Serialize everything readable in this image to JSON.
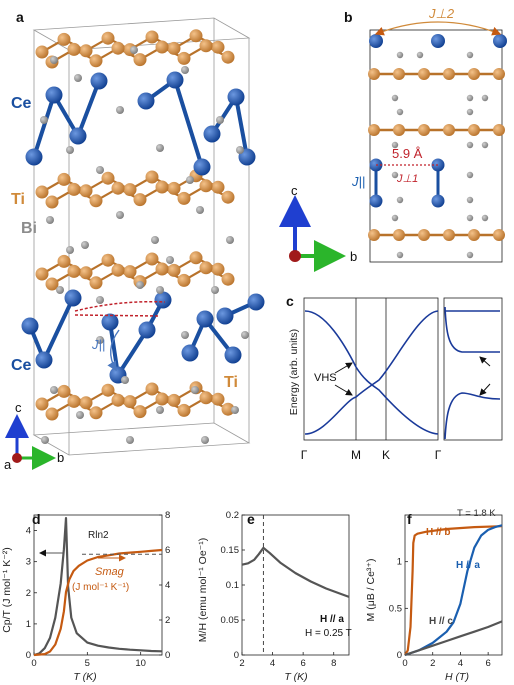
{
  "panels": {
    "a": "a",
    "b": "b",
    "c": "c",
    "d": "d",
    "e": "e",
    "f": "f"
  },
  "structure": {
    "atom_ce_top": "Ce",
    "atom_ti_top": "Ti",
    "atom_bi": "Bi",
    "atom_ce_bottom": "Ce",
    "atom_ti_bottom": "Ti",
    "j_parallel": "J||",
    "axis_c": "c",
    "axis_a": "a",
    "axis_b": "b",
    "distance": "5.9 Å",
    "j_perp1": "J⊥1",
    "j_perp2": "J⊥2",
    "colors": {
      "ce": "#1a4fa0",
      "ti": "#d08a3a",
      "bi": "#8c8c8c",
      "dashed": "#c0222b",
      "axis_c": "#1f3fd0",
      "axis_b": "#2bb52b",
      "axis_a": "#a01a1a"
    }
  },
  "band_panel": {
    "ylabel": "Energy (arb. units)",
    "vhs": "VHS",
    "kpoints": [
      "Γ",
      "M",
      "K",
      "Γ"
    ]
  },
  "chart_data": [
    {
      "panel": "d",
      "type": "line",
      "xlabel": "T (K)",
      "ylabel_left": "Cp/T (J mol⁻¹ K⁻²)",
      "ylabel_right": "",
      "xlim": [
        0,
        12
      ],
      "ylim_left": [
        0,
        4.5
      ],
      "ylim_right": [
        0,
        8
      ],
      "xticks": [
        0,
        5,
        10
      ],
      "yticks_left": [
        0,
        1,
        2,
        3,
        4
      ],
      "yticks_right": [
        0,
        2,
        4,
        6,
        8
      ],
      "annotations": [
        "Rln2",
        "Smag",
        "(J mol⁻¹ K⁻¹)"
      ],
      "series": [
        {
          "color": "#555555",
          "axis": "left",
          "x": [
            0,
            0.5,
            1,
            1.5,
            2,
            2.5,
            2.8,
            3.0,
            3.2,
            3.5,
            4,
            5,
            6,
            7,
            8,
            9,
            10,
            11,
            12
          ],
          "y": [
            0,
            0.05,
            0.22,
            0.55,
            1.2,
            2.3,
            3.4,
            4.4,
            2.2,
            1.2,
            0.7,
            0.4,
            0.3,
            0.24,
            0.2,
            0.17,
            0.15,
            0.13,
            0.12
          ]
        },
        {
          "color": "#c55a11",
          "axis": "right",
          "x": [
            0,
            1,
            1.5,
            2,
            2.5,
            2.8,
            3.0,
            3.3,
            3.7,
            4.2,
            5,
            6,
            7,
            8,
            9,
            10,
            11,
            12
          ],
          "y": [
            0,
            0.05,
            0.2,
            0.6,
            1.5,
            2.5,
            3.6,
            4.3,
            4.8,
            5.1,
            5.4,
            5.6,
            5.7,
            5.8,
            5.85,
            5.9,
            5.95,
            6.0
          ]
        }
      ],
      "reference_y_right": 5.76
    },
    {
      "panel": "e",
      "type": "line",
      "xlabel": "T (K)",
      "ylabel": "M/H (emu mol⁻¹ Oe⁻¹)",
      "xlim": [
        2,
        9
      ],
      "ylim": [
        0,
        0.2
      ],
      "xticks": [
        2,
        4,
        6,
        8
      ],
      "yticks": [
        0,
        0.05,
        0.1,
        0.15,
        0.2
      ],
      "annotations": [
        "H // a",
        "H = 0.25 T"
      ],
      "vline_x": 3.4,
      "series": [
        {
          "color": "#555555",
          "x": [
            2,
            2.4,
            2.8,
            3.1,
            3.4,
            3.8,
            4.5,
            5.5,
            6.5,
            7.5,
            8.5,
            9
          ],
          "y": [
            0.129,
            0.131,
            0.136,
            0.144,
            0.153,
            0.146,
            0.132,
            0.117,
            0.105,
            0.095,
            0.087,
            0.083
          ]
        }
      ]
    },
    {
      "panel": "f",
      "type": "line",
      "xlabel": "H (T)",
      "ylabel": "M (μB / Ce³⁺)",
      "xlim": [
        0,
        7
      ],
      "ylim": [
        0,
        1.5
      ],
      "xticks": [
        0,
        2,
        4,
        6
      ],
      "yticks": [
        0,
        0.5,
        1
      ],
      "annotations": [
        "T = 1.8 K"
      ],
      "series": [
        {
          "name": "H // b",
          "color": "#c55a11",
          "x": [
            0,
            0.2,
            0.4,
            0.55,
            0.6,
            0.7,
            0.9,
            1.5,
            3,
            5,
            7
          ],
          "y": [
            0,
            0.05,
            0.3,
            0.9,
            1.2,
            1.28,
            1.3,
            1.32,
            1.35,
            1.37,
            1.38
          ]
        },
        {
          "name": "H // a",
          "color": "#1a5fb0",
          "x": [
            0,
            1,
            2,
            3,
            3.5,
            4,
            4.5,
            5,
            5.5,
            6,
            6.5,
            7
          ],
          "y": [
            0,
            0.05,
            0.13,
            0.25,
            0.35,
            0.55,
            0.9,
            1.15,
            1.28,
            1.34,
            1.37,
            1.39
          ]
        },
        {
          "name": "H // c",
          "color": "#555555",
          "x": [
            0,
            1,
            2,
            3,
            4,
            5,
            6,
            7
          ],
          "y": [
            0,
            0.05,
            0.1,
            0.15,
            0.2,
            0.25,
            0.3,
            0.36
          ]
        }
      ]
    }
  ]
}
